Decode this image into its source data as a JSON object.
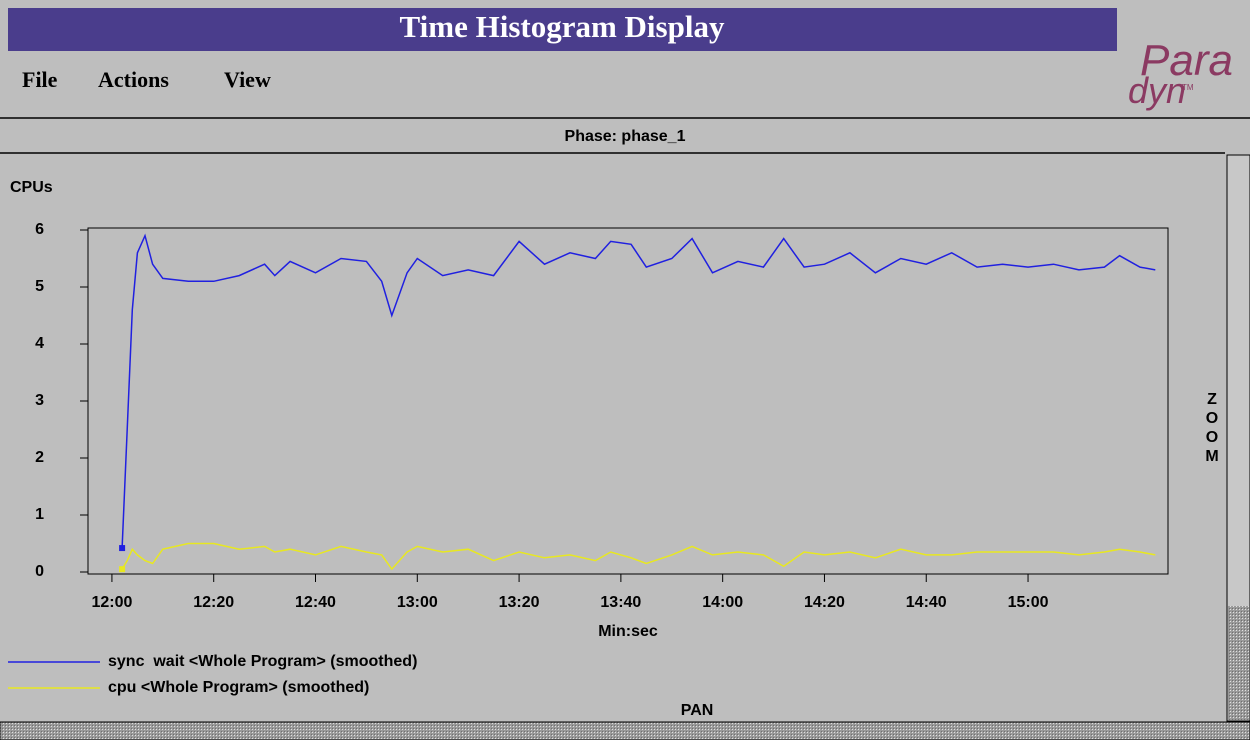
{
  "window": {
    "title": "Time Histogram Display",
    "menu": [
      "File",
      "Actions",
      "View"
    ],
    "logo": {
      "top": "Para",
      "bottom": "dyn",
      "mark": "TM"
    },
    "phase": "Phase: phase_1",
    "zoom": "ZOOM",
    "pan": "PAN"
  },
  "chart_data": {
    "type": "line",
    "y_label": "CPUs",
    "x_label": "Min:sec",
    "xlim": [
      715.3,
      927.5
    ],
    "ylim": [
      0,
      6
    ],
    "xticks": [
      {
        "value": 720,
        "label": "12:00"
      },
      {
        "value": 740,
        "label": "12:20"
      },
      {
        "value": 760,
        "label": "12:40"
      },
      {
        "value": 780,
        "label": "13:00"
      },
      {
        "value": 800,
        "label": "13:20"
      },
      {
        "value": 820,
        "label": "13:40"
      },
      {
        "value": 840,
        "label": "14:00"
      },
      {
        "value": 860,
        "label": "14:20"
      },
      {
        "value": 880,
        "label": "14:40"
      },
      {
        "value": 900,
        "label": "15:00"
      }
    ],
    "yticks": [
      0,
      1,
      2,
      3,
      4,
      5,
      6
    ],
    "x": [
      722,
      723,
      724,
      725,
      726.5,
      728,
      730,
      735,
      740,
      745,
      750,
      752,
      755,
      760,
      765,
      770,
      773,
      775,
      778,
      780,
      785,
      790,
      795,
      800,
      805,
      810,
      815,
      818,
      822,
      825,
      830,
      834,
      838,
      843,
      848,
      852,
      856,
      860,
      865,
      870,
      875,
      880,
      885,
      890,
      895,
      900,
      905,
      910,
      915,
      918,
      922,
      925
    ],
    "series": [
      {
        "name": "sync  wait <Whole Program> (smoothed)",
        "color": "#2020e0",
        "values": [
          0.42,
          2.5,
          4.6,
          5.6,
          5.9,
          5.4,
          5.15,
          5.1,
          5.1,
          5.2,
          5.4,
          5.2,
          5.45,
          5.25,
          5.5,
          5.45,
          5.1,
          4.5,
          5.25,
          5.5,
          5.2,
          5.3,
          5.2,
          5.8,
          5.4,
          5.6,
          5.5,
          5.8,
          5.75,
          5.35,
          5.5,
          5.85,
          5.25,
          5.45,
          5.35,
          5.85,
          5.35,
          5.4,
          5.6,
          5.25,
          5.5,
          5.4,
          5.6,
          5.35,
          5.4,
          5.35,
          5.4,
          5.3,
          5.35,
          5.55,
          5.35,
          5.3
        ]
      },
      {
        "name": "cpu <Whole Program> (smoothed)",
        "color": "#e8e820",
        "values": [
          0.05,
          0.2,
          0.4,
          0.3,
          0.2,
          0.15,
          0.4,
          0.5,
          0.5,
          0.4,
          0.45,
          0.35,
          0.4,
          0.3,
          0.45,
          0.35,
          0.3,
          0.05,
          0.35,
          0.45,
          0.35,
          0.4,
          0.2,
          0.35,
          0.25,
          0.3,
          0.2,
          0.35,
          0.25,
          0.15,
          0.3,
          0.45,
          0.3,
          0.35,
          0.3,
          0.1,
          0.35,
          0.3,
          0.35,
          0.25,
          0.4,
          0.3,
          0.3,
          0.35,
          0.35,
          0.35,
          0.35,
          0.3,
          0.35,
          0.4,
          0.35,
          0.3
        ]
      }
    ]
  }
}
